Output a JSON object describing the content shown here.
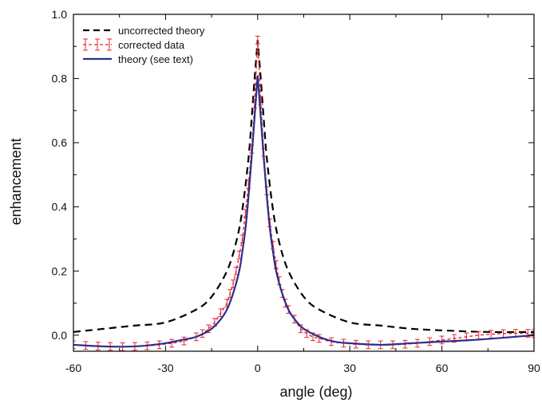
{
  "chart_data": {
    "type": "line",
    "title": "",
    "xlabel": "angle (deg)",
    "ylabel": "enhancement",
    "xlim": [
      -60,
      90
    ],
    "ylim": [
      -0.05,
      1.0
    ],
    "x_ticks": [
      -60,
      -30,
      0,
      30,
      60,
      90
    ],
    "y_ticks": [
      0.0,
      0.2,
      0.4,
      0.6,
      0.8,
      1.0
    ],
    "y_tick_labels": [
      "0.0",
      "0.2",
      "0.4",
      "0.6",
      "0.8",
      "1.0"
    ],
    "grid": false,
    "legend_position": "top-left",
    "series": [
      {
        "name": "uncorrected theory",
        "style": "dashed",
        "color": "#000000",
        "x": [
          -60,
          -50,
          -40,
          -30,
          -20,
          -15,
          -10,
          -7,
          -5,
          -3,
          -2,
          -1,
          0,
          1,
          2,
          3,
          5,
          7,
          10,
          15,
          20,
          30,
          40,
          50,
          60,
          75,
          90
        ],
        "y": [
          0.01,
          0.02,
          0.03,
          0.04,
          0.08,
          0.12,
          0.2,
          0.29,
          0.39,
          0.55,
          0.67,
          0.8,
          0.92,
          0.8,
          0.67,
          0.55,
          0.39,
          0.29,
          0.2,
          0.12,
          0.08,
          0.04,
          0.03,
          0.02,
          0.015,
          0.01,
          0.01
        ]
      },
      {
        "name": "corrected data",
        "style": "points-with-error-bars",
        "color": "#e8262b",
        "error": 0.012,
        "x": [
          -60,
          -56,
          -52,
          -48,
          -44,
          -40,
          -36,
          -32,
          -28,
          -24,
          -20,
          -18,
          -16,
          -14,
          -12,
          -10,
          -9,
          -8,
          -7,
          -6,
          -5,
          -4,
          -3,
          -2,
          -1,
          0,
          1,
          2,
          3,
          4,
          5,
          6,
          7,
          8,
          9,
          10,
          12,
          14,
          16,
          18,
          20,
          24,
          28,
          32,
          36,
          40,
          44,
          48,
          52,
          56,
          60,
          64,
          68,
          72,
          76,
          80,
          84,
          88,
          90
        ],
        "y": [
          -0.03,
          -0.032,
          -0.034,
          -0.035,
          -0.036,
          -0.035,
          -0.033,
          -0.03,
          -0.025,
          -0.018,
          -0.005,
          0.005,
          0.02,
          0.04,
          0.07,
          0.1,
          0.13,
          0.16,
          0.2,
          0.25,
          0.3,
          0.38,
          0.47,
          0.58,
          0.72,
          0.92,
          0.73,
          0.57,
          0.45,
          0.35,
          0.28,
          0.22,
          0.17,
          0.13,
          0.1,
          0.08,
          0.05,
          0.02,
          0.005,
          -0.005,
          -0.01,
          -0.02,
          -0.025,
          -0.028,
          -0.03,
          -0.03,
          -0.03,
          -0.028,
          -0.025,
          -0.02,
          -0.015,
          -0.01,
          -0.005,
          0.0,
          0.003,
          0.005,
          0.006,
          0.006,
          0.005
        ]
      },
      {
        "name": "theory (see text)",
        "style": "solid",
        "color": "#2b2f8f",
        "x": [
          -60,
          -50,
          -40,
          -30,
          -25,
          -20,
          -15,
          -12,
          -10,
          -8,
          -6,
          -5,
          -4,
          -3,
          -2,
          -1,
          0,
          1,
          2,
          3,
          4,
          5,
          6,
          8,
          10,
          12,
          15,
          20,
          25,
          30,
          40,
          50,
          60,
          70,
          80,
          90
        ],
        "y": [
          -0.03,
          -0.035,
          -0.035,
          -0.025,
          -0.015,
          -0.005,
          0.02,
          0.05,
          0.08,
          0.13,
          0.2,
          0.26,
          0.33,
          0.43,
          0.55,
          0.68,
          0.81,
          0.68,
          0.55,
          0.43,
          0.33,
          0.26,
          0.2,
          0.13,
          0.08,
          0.05,
          0.02,
          -0.005,
          -0.02,
          -0.025,
          -0.03,
          -0.025,
          -0.02,
          -0.015,
          -0.008,
          0.0
        ]
      }
    ]
  }
}
